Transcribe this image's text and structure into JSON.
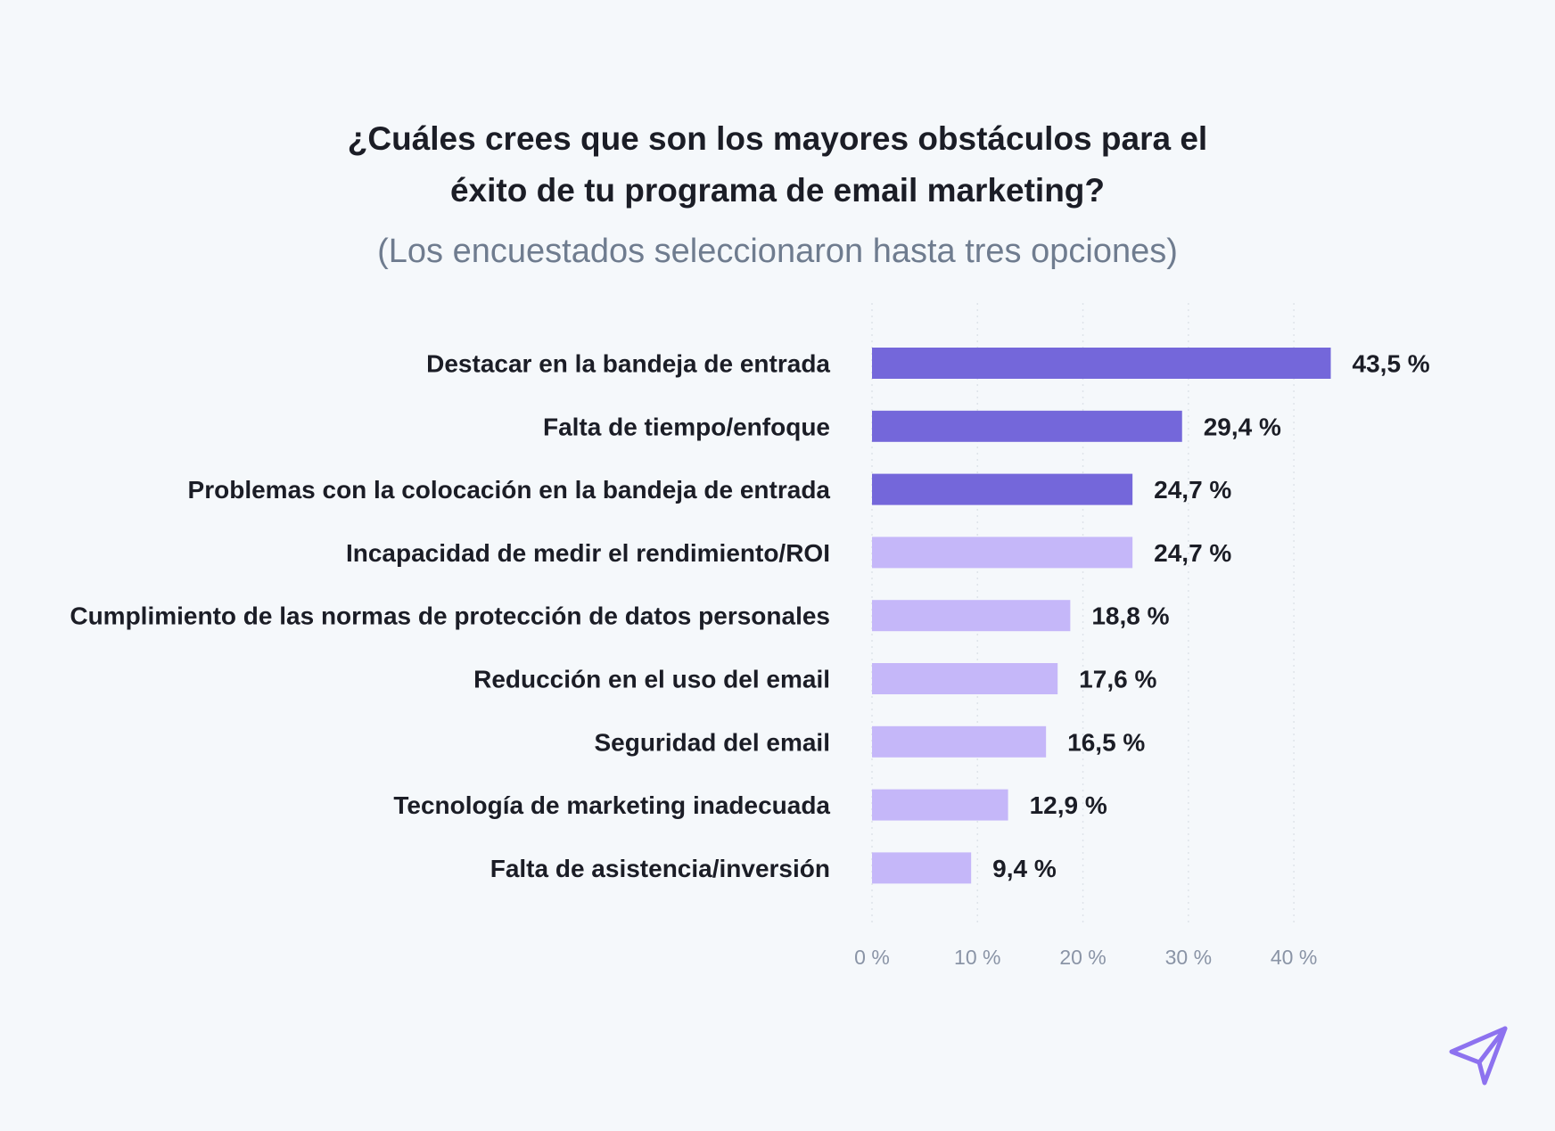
{
  "chart_data": {
    "type": "bar",
    "orientation": "horizontal",
    "title_line1": "¿Cuáles crees que son los mayores obstáculos para el",
    "title_line2": "éxito de tu programa de email marketing?",
    "subtitle": "(Los encuestados seleccionaron hasta tres opciones)",
    "categories": [
      "Destacar en la bandeja de entrada",
      "Falta de tiempo/enfoque",
      "Problemas con la colocación en la bandeja de entrada",
      "Incapacidad de medir el rendimiento/ROI",
      "Cumplimiento de las normas de protección de datos personales",
      "Reducción en el uso del email",
      "Seguridad del email",
      "Tecnología de marketing inadecuada",
      "Falta de asistencia/inversión"
    ],
    "values": [
      43.5,
      29.4,
      24.7,
      24.7,
      18.8,
      17.6,
      16.5,
      12.9,
      9.4
    ],
    "value_labels": [
      "43,5 %",
      "29,4 %",
      "24,7 %",
      "24,7 %",
      "18,8 %",
      "17,6 %",
      "16,5 %",
      "12,9 %",
      "9,4 %"
    ],
    "bar_colors": [
      "#7467da",
      "#7467da",
      "#7467da",
      "#c5b7f9",
      "#c5b7f9",
      "#c5b7f9",
      "#c5b7f9",
      "#c5b7f9",
      "#c5b7f9"
    ],
    "xticks": [
      0,
      10,
      20,
      30,
      40
    ],
    "xtick_labels": [
      "0 %",
      "10 %",
      "20 %",
      "30 %",
      "40 %"
    ],
    "xlim": [
      0,
      43.5
    ],
    "grid": true,
    "grid_style": "dotted-vertical"
  },
  "colors": {
    "background": "#f5f8fb",
    "highlight": "#7467da",
    "default": "#c5b7f9",
    "grid": "#dfe4ea",
    "logo": "#8d72ef"
  },
  "logo": {
    "icon": "paper-plane-icon"
  }
}
